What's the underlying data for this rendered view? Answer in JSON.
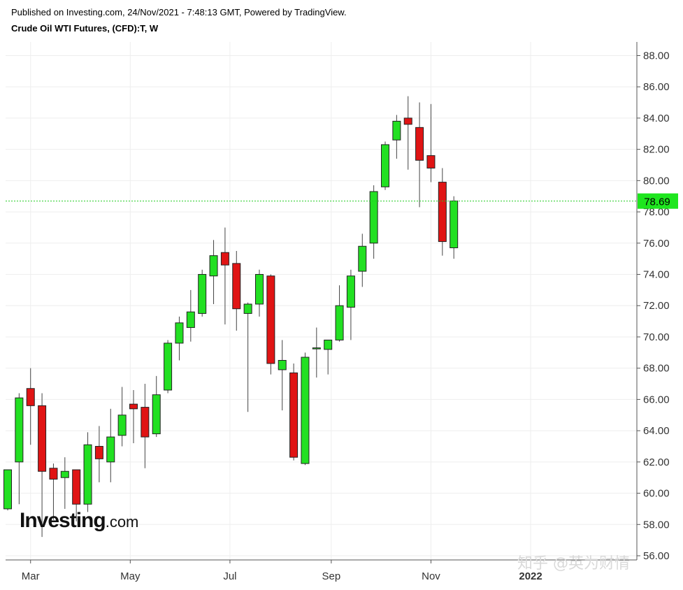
{
  "header": {
    "published": "Published on Investing.com, 24/Nov/2021 - 7:48:13 GMT, Powered by TradingView.",
    "title": "Crude Oil WTI Futures, (CFD):T, W"
  },
  "brand": {
    "name": "Investing",
    "suffix": ".com"
  },
  "watermark": "知乎 @英为财情",
  "colors": {
    "up": "#22e022",
    "down": "#e01414",
    "current_line": "#22cc22",
    "grid": "#eeeeee"
  },
  "chart_data": {
    "type": "candlestick",
    "interval": "weekly",
    "ylim": [
      56,
      89
    ],
    "y_ticks": [
      "88.00",
      "86.00",
      "84.00",
      "82.00",
      "80.00",
      "78.00",
      "76.00",
      "74.00",
      "72.00",
      "70.00",
      "68.00",
      "66.00",
      "64.00",
      "62.00",
      "60.00",
      "58.00",
      "56.00"
    ],
    "x_ticks": [
      {
        "label": "Mar",
        "date": "2021-03-01"
      },
      {
        "label": "May",
        "date": "2021-05-01"
      },
      {
        "label": "Jul",
        "date": "2021-07-01"
      },
      {
        "label": "Sep",
        "date": "2021-09-01"
      },
      {
        "label": "Nov",
        "date": "2021-11-01"
      },
      {
        "label": "2022",
        "date": "2022-01-01"
      }
    ],
    "x_range": [
      "2021-02-15",
      "2022-03-07"
    ],
    "current_price": 78.69,
    "current_price_label": "78.69",
    "candles": [
      {
        "date": "2021-02-15",
        "open": 59.0,
        "high": 61.5,
        "low": 58.9,
        "close": 61.5
      },
      {
        "date": "2021-02-22",
        "open": 62.0,
        "high": 66.4,
        "low": 59.3,
        "close": 66.1
      },
      {
        "date": "2021-03-01",
        "open": 66.7,
        "high": 68.0,
        "low": 63.1,
        "close": 65.6
      },
      {
        "date": "2021-03-08",
        "open": 65.6,
        "high": 66.4,
        "low": 57.2,
        "close": 61.4
      },
      {
        "date": "2021-03-15",
        "open": 61.6,
        "high": 61.9,
        "low": 58.3,
        "close": 60.9
      },
      {
        "date": "2021-03-22",
        "open": 61.0,
        "high": 62.3,
        "low": 59.0,
        "close": 61.4
      },
      {
        "date": "2021-03-29",
        "open": 61.5,
        "high": 61.5,
        "low": 58.2,
        "close": 59.3
      },
      {
        "date": "2021-04-05",
        "open": 59.3,
        "high": 63.9,
        "low": 58.8,
        "close": 63.1
      },
      {
        "date": "2021-04-12",
        "open": 63.0,
        "high": 64.3,
        "low": 60.7,
        "close": 62.2
      },
      {
        "date": "2021-04-19",
        "open": 62.0,
        "high": 65.4,
        "low": 60.7,
        "close": 63.6
      },
      {
        "date": "2021-04-26",
        "open": 63.7,
        "high": 66.8,
        "low": 63.0,
        "close": 65.0
      },
      {
        "date": "2021-05-03",
        "open": 65.7,
        "high": 66.6,
        "low": 63.2,
        "close": 65.4
      },
      {
        "date": "2021-05-10",
        "open": 65.5,
        "high": 67.0,
        "low": 61.6,
        "close": 63.6
      },
      {
        "date": "2021-05-17",
        "open": 63.8,
        "high": 67.5,
        "low": 63.6,
        "close": 66.3
      },
      {
        "date": "2021-05-24",
        "open": 66.6,
        "high": 69.8,
        "low": 66.4,
        "close": 69.6
      },
      {
        "date": "2021-05-31",
        "open": 69.6,
        "high": 71.3,
        "low": 68.5,
        "close": 70.9
      },
      {
        "date": "2021-06-07",
        "open": 70.6,
        "high": 73.0,
        "low": 69.7,
        "close": 71.6
      },
      {
        "date": "2021-06-14",
        "open": 71.5,
        "high": 74.3,
        "low": 71.3,
        "close": 74.0
      },
      {
        "date": "2021-06-21",
        "open": 73.9,
        "high": 76.2,
        "low": 72.1,
        "close": 75.2
      },
      {
        "date": "2021-06-28",
        "open": 75.4,
        "high": 77.0,
        "low": 70.8,
        "close": 74.6
      },
      {
        "date": "2021-07-05",
        "open": 74.7,
        "high": 75.5,
        "low": 70.4,
        "close": 71.8
      },
      {
        "date": "2021-07-12",
        "open": 71.5,
        "high": 72.2,
        "low": 65.2,
        "close": 72.1
      },
      {
        "date": "2021-07-19",
        "open": 72.1,
        "high": 74.3,
        "low": 71.3,
        "close": 74.0
      },
      {
        "date": "2021-07-26",
        "open": 73.9,
        "high": 74.0,
        "low": 67.6,
        "close": 68.3
      },
      {
        "date": "2021-08-02",
        "open": 67.9,
        "high": 69.8,
        "low": 65.3,
        "close": 68.5
      },
      {
        "date": "2021-08-09",
        "open": 67.7,
        "high": 68.3,
        "low": 62.1,
        "close": 62.3
      },
      {
        "date": "2021-08-16",
        "open": 61.9,
        "high": 69.0,
        "low": 61.8,
        "close": 68.7
      },
      {
        "date": "2021-08-23",
        "open": 69.3,
        "high": 70.6,
        "low": 67.4,
        "close": 69.3
      },
      {
        "date": "2021-08-30",
        "open": 69.2,
        "high": 69.8,
        "low": 67.6,
        "close": 69.8
      },
      {
        "date": "2021-09-06",
        "open": 69.8,
        "high": 73.3,
        "low": 69.7,
        "close": 72.0
      },
      {
        "date": "2021-09-13",
        "open": 71.9,
        "high": 74.3,
        "low": 69.8,
        "close": 73.9
      },
      {
        "date": "2021-09-20",
        "open": 74.2,
        "high": 76.6,
        "low": 73.2,
        "close": 75.8
      },
      {
        "date": "2021-09-27",
        "open": 76.0,
        "high": 79.7,
        "low": 75.0,
        "close": 79.3
      },
      {
        "date": "2021-10-04",
        "open": 79.6,
        "high": 82.5,
        "low": 79.4,
        "close": 82.3
      },
      {
        "date": "2021-10-11",
        "open": 82.6,
        "high": 84.2,
        "low": 81.4,
        "close": 83.8
      },
      {
        "date": "2021-10-18",
        "open": 84.0,
        "high": 85.4,
        "low": 80.7,
        "close": 83.6
      },
      {
        "date": "2021-10-25",
        "open": 83.4,
        "high": 85.0,
        "low": 78.3,
        "close": 81.3
      },
      {
        "date": "2021-11-01",
        "open": 81.6,
        "high": 84.9,
        "low": 79.9,
        "close": 80.8
      },
      {
        "date": "2021-11-08",
        "open": 79.9,
        "high": 80.8,
        "low": 75.2,
        "close": 76.1
      },
      {
        "date": "2021-11-15",
        "open": 75.7,
        "high": 79.0,
        "low": 75.0,
        "close": 78.7
      }
    ]
  }
}
